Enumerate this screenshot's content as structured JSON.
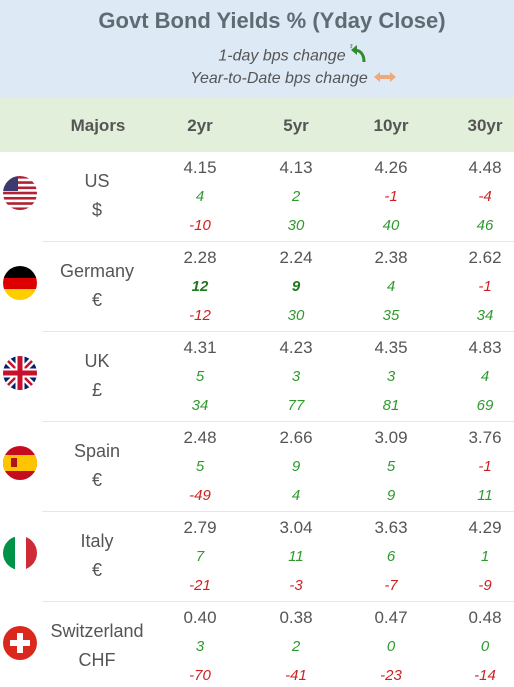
{
  "header": {
    "title": "Govt Bond Yields %  (Yday Close)",
    "sub1": "1-day bps change",
    "sub2": "Year-to-Date bps change",
    "day_icon": "green-curved-arrow-icon",
    "ytd_icon": "orange-double-arrow-icon"
  },
  "columns": {
    "majors": "Majors",
    "c2": "2yr",
    "c5": "5yr",
    "c10": "10yr",
    "c30": "30yr"
  },
  "colors": {
    "positive": "#2e9a2e",
    "negative": "#cc2222",
    "header_bg": "#dde9f5",
    "colhead_bg": "#e2efdb"
  },
  "rows": [
    {
      "name": "US",
      "currency": "$",
      "flag": "us-flag-icon",
      "yields": [
        "4.15",
        "4.13",
        "4.26",
        "4.48"
      ],
      "day": [
        "4",
        "2",
        "-1",
        "-4"
      ],
      "ytd": [
        "-10",
        "30",
        "40",
        "46"
      ]
    },
    {
      "name": "Germany",
      "currency": "€",
      "flag": "germany-flag-icon",
      "yields": [
        "2.28",
        "2.24",
        "2.38",
        "2.62"
      ],
      "day": [
        "12",
        "9",
        "4",
        "-1"
      ],
      "ytd": [
        "-12",
        "30",
        "35",
        "34"
      ]
    },
    {
      "name": "UK",
      "currency": "£",
      "flag": "uk-flag-icon",
      "yields": [
        "4.31",
        "4.23",
        "4.35",
        "4.83"
      ],
      "day": [
        "5",
        "3",
        "3",
        "4"
      ],
      "ytd": [
        "34",
        "77",
        "81",
        "69"
      ]
    },
    {
      "name": "Spain",
      "currency": "€",
      "flag": "spain-flag-icon",
      "yields": [
        "2.48",
        "2.66",
        "3.09",
        "3.76"
      ],
      "day": [
        "5",
        "9",
        "5",
        "-1"
      ],
      "ytd": [
        "-49",
        "4",
        "9",
        "11"
      ]
    },
    {
      "name": "Italy",
      "currency": "€",
      "flag": "italy-flag-icon",
      "yields": [
        "2.79",
        "3.04",
        "3.63",
        "4.29"
      ],
      "day": [
        "7",
        "11",
        "6",
        "1"
      ],
      "ytd": [
        "-21",
        "-3",
        "-7",
        "-9"
      ]
    },
    {
      "name": "Switzerland",
      "currency": "CHF",
      "flag": "switzerland-flag-icon",
      "yields": [
        "0.40",
        "0.38",
        "0.47",
        "0.48"
      ],
      "day": [
        "3",
        "2",
        "0",
        "0"
      ],
      "ytd": [
        "-70",
        "-41",
        "-23",
        "-14"
      ]
    }
  ]
}
